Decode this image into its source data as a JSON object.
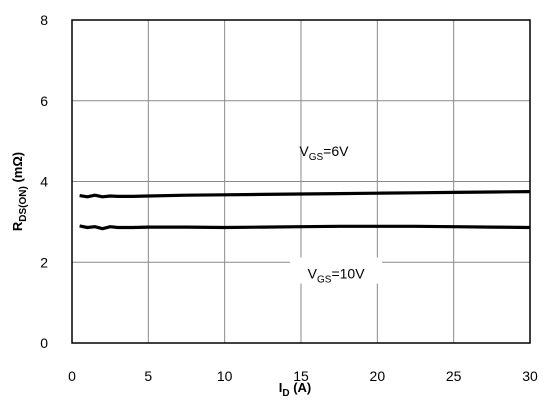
{
  "chart_data": {
    "type": "line",
    "xlabel": {
      "main": "I",
      "sub": "D",
      "rest": " (A)"
    },
    "ylabel": {
      "main": "R",
      "sub": "DS(ON)",
      "rest": " (mΩ)"
    },
    "xlim": [
      0,
      30
    ],
    "ylim": [
      0,
      8
    ],
    "xticks": [
      0,
      5,
      10,
      15,
      20,
      25,
      30
    ],
    "yticks": [
      0,
      2,
      4,
      6,
      8
    ],
    "grid": true,
    "series": [
      {
        "label": {
          "main": "V",
          "sub": "GS",
          "rest": "=6V"
        },
        "x": [
          0.5,
          1,
          1.5,
          2,
          2.5,
          3,
          4,
          5,
          7.5,
          10,
          12.5,
          15,
          17.5,
          20,
          22.5,
          25,
          27.5,
          30
        ],
        "values": [
          3.65,
          3.62,
          3.66,
          3.62,
          3.64,
          3.63,
          3.63,
          3.64,
          3.66,
          3.67,
          3.68,
          3.69,
          3.7,
          3.71,
          3.72,
          3.73,
          3.74,
          3.75
        ]
      },
      {
        "label": {
          "main": "V",
          "sub": "GS",
          "rest": "=10V"
        },
        "x": [
          0.5,
          1,
          1.5,
          2,
          2.5,
          3,
          4,
          5,
          7.5,
          10,
          12.5,
          15,
          17.5,
          20,
          22.5,
          25,
          27.5,
          30
        ],
        "values": [
          2.9,
          2.86,
          2.88,
          2.83,
          2.88,
          2.86,
          2.86,
          2.87,
          2.87,
          2.86,
          2.87,
          2.88,
          2.89,
          2.89,
          2.89,
          2.88,
          2.87,
          2.86
        ]
      }
    ]
  }
}
